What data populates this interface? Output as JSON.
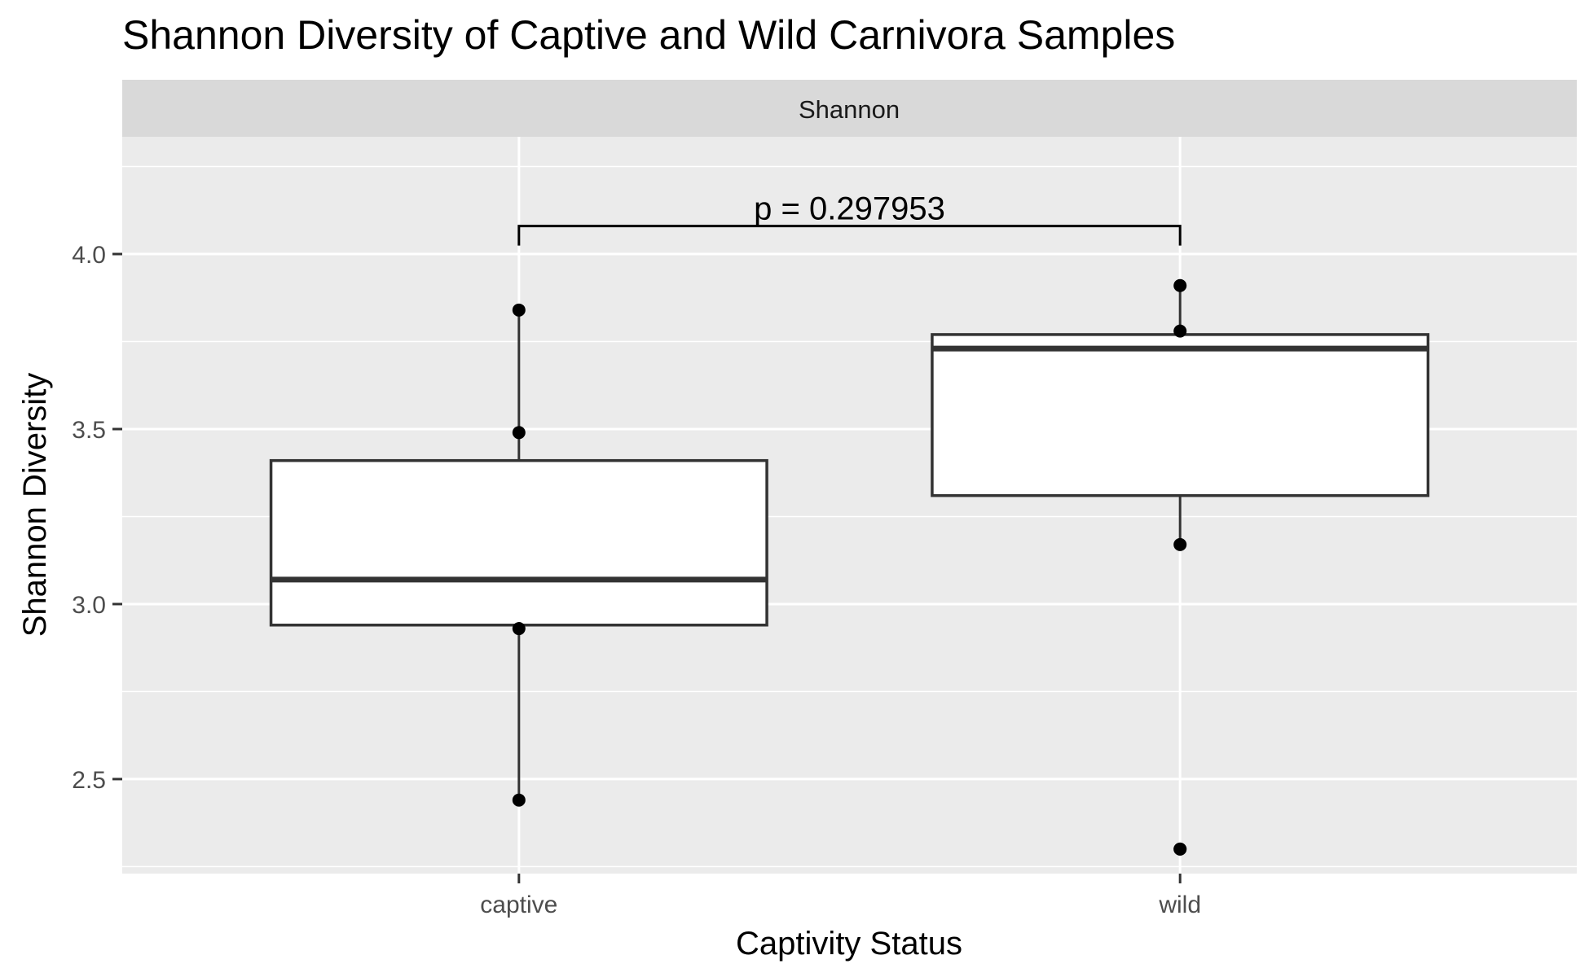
{
  "chart_data": {
    "type": "box",
    "title": "Shannon Diversity of Captive and Wild Carnivora Samples",
    "facet_label": "Shannon",
    "xlabel": "Captivity Status",
    "ylabel": "Shannon Diversity",
    "categories": [
      "captive",
      "wild"
    ],
    "ylim": [
      2.23,
      4.335
    ],
    "yticks": [
      2.5,
      3.0,
      3.5,
      4.0
    ],
    "ytick_labels": [
      "2.5",
      "3.0",
      "3.5",
      "4.0"
    ],
    "grid": true,
    "boxes": [
      {
        "category": "captive",
        "min": 2.44,
        "q1": 2.94,
        "median": 3.07,
        "q3": 3.41,
        "max": 3.84,
        "outliers": []
      },
      {
        "category": "wild",
        "min": 3.17,
        "q1": 3.31,
        "median": 3.73,
        "q3": 3.77,
        "max": 3.92,
        "outliers": [
          2.3
        ]
      }
    ],
    "points": [
      {
        "category": "captive",
        "y": 3.84
      },
      {
        "category": "captive",
        "y": 3.49
      },
      {
        "category": "captive",
        "y": 2.93
      },
      {
        "category": "captive",
        "y": 2.44
      },
      {
        "category": "wild",
        "y": 3.91
      },
      {
        "category": "wild",
        "y": 3.78
      },
      {
        "category": "wild",
        "y": 3.17
      },
      {
        "category": "wild",
        "y": 2.3
      }
    ],
    "comparison": {
      "groups": [
        "captive",
        "wild"
      ],
      "label": "p = 0.297953",
      "y": 4.08
    },
    "colors": {
      "panel_background": "#ebebeb",
      "strip_background": "#d9d9d9",
      "grid": "#ffffff",
      "box_fill": "#ffffff",
      "box_line": "#333333",
      "point": "#000000"
    }
  }
}
